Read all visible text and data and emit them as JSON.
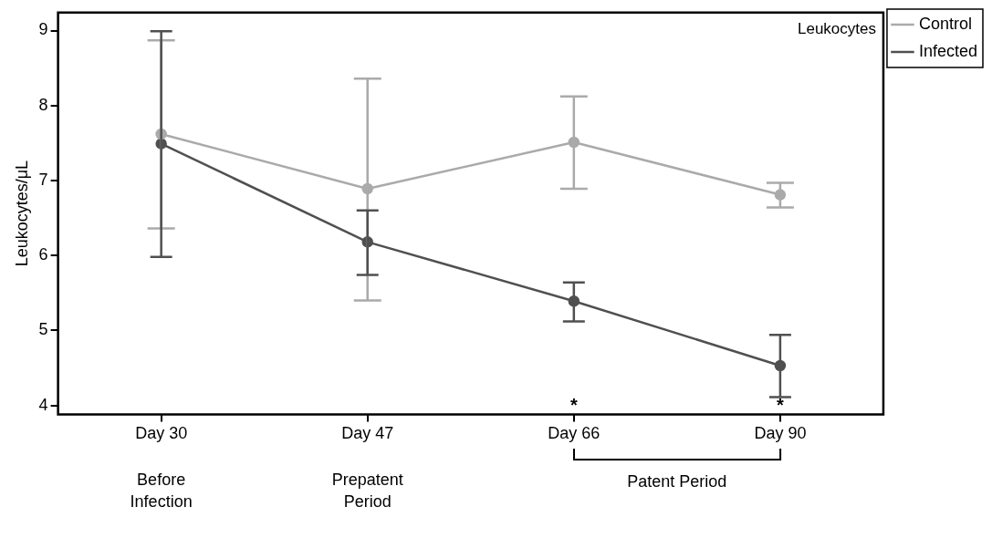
{
  "chart_data": {
    "type": "line",
    "ylabel": "Leukocytes/μL",
    "categories": [
      "Day 30",
      "Day 47",
      "Day 66",
      "Day 90"
    ],
    "series": [
      {
        "name": "Control",
        "color": "#aaaaaa",
        "values": [
          7.62,
          6.89,
          7.51,
          6.81
        ],
        "errors": [
          [
            6.36,
            8.87
          ],
          [
            5.4,
            8.36
          ],
          [
            6.89,
            8.12
          ],
          [
            6.64,
            6.97
          ]
        ]
      },
      {
        "name": "Infected",
        "color": "#505050",
        "values": [
          7.49,
          6.18,
          5.39,
          4.53
        ],
        "errors": [
          [
            5.98,
            8.99
          ],
          [
            5.74,
            6.6
          ],
          [
            5.12,
            5.64
          ],
          [
            4.11,
            4.94
          ]
        ]
      }
    ],
    "ylim": [
      3.88,
      9.24
    ],
    "yticks": [
      4,
      5,
      6,
      7,
      8,
      9
    ],
    "grid": false,
    "legend": "top right",
    "marker": "circle",
    "line_style": "solid",
    "annotations": [
      "Leukocytes",
      "*",
      "*",
      "Before Infection",
      "Prepatent Period",
      "Patent Period"
    ]
  }
}
